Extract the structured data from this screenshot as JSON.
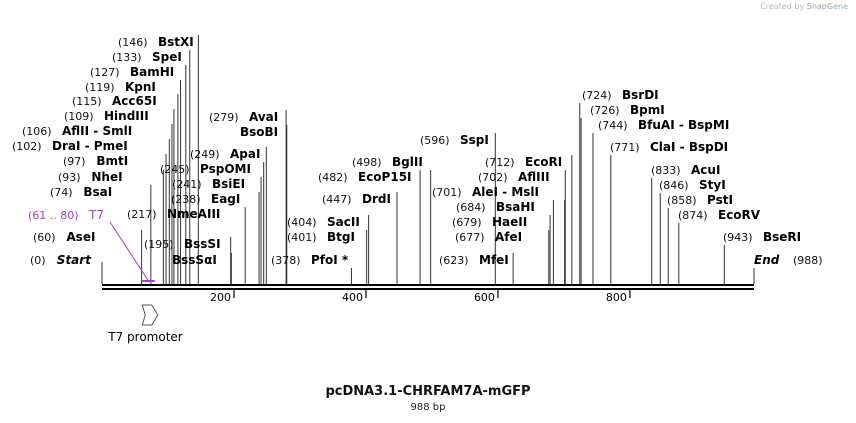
{
  "credit": {
    "prefix": "Created by",
    "brand": "SnapGene"
  },
  "plasmid": {
    "name": "pcDNA3.1-CHRFAM7A-mGFP",
    "length_label": "988 bp",
    "length": 988
  },
  "colors": {
    "feature": "#a040c8",
    "text": "#000000",
    "line": "#333333"
  },
  "axis_ticks": [
    {
      "pos": 200,
      "label": "200"
    },
    {
      "pos": 400,
      "label": "400"
    },
    {
      "pos": 600,
      "label": "600"
    },
    {
      "pos": 800,
      "label": "800"
    }
  ],
  "features": [
    {
      "name": "T7 promoter",
      "start": 61,
      "end": 80,
      "direction": "forward"
    }
  ],
  "primer": {
    "name": "T7",
    "range": "(61 .. 80)",
    "start": 61,
    "end": 80
  },
  "ends": [
    {
      "name": "Start",
      "pos_label": "(0)",
      "pos": 0
    },
    {
      "name": "End",
      "pos_label": "(988)",
      "pos": 988
    }
  ],
  "sites": [
    {
      "pos_label": "(60)",
      "name": "AseI",
      "pos": 60
    },
    {
      "pos_label": "(74)",
      "name": "BsaI",
      "pos": 74
    },
    {
      "pos_label": "(93)",
      "name": "NheI",
      "pos": 93
    },
    {
      "pos_label": "(97)",
      "name": "BmtI",
      "pos": 97
    },
    {
      "pos_label": "(102)",
      "name": "DraI  -  PmeI",
      "pos": 102
    },
    {
      "pos_label": "(106)",
      "name": "AflII  -  SmlI",
      "pos": 106
    },
    {
      "pos_label": "(109)",
      "name": "HindIII",
      "pos": 109
    },
    {
      "pos_label": "(115)",
      "name": "Acc65I",
      "pos": 115
    },
    {
      "pos_label": "(119)",
      "name": "KpnI",
      "pos": 119
    },
    {
      "pos_label": "(127)",
      "name": "BamHI",
      "pos": 127
    },
    {
      "pos_label": "(133)",
      "name": "SpeI",
      "pos": 133
    },
    {
      "pos_label": "(146)",
      "name": "BstXI",
      "pos": 146
    },
    {
      "pos_label": "(217)",
      "name": "NmeAIII",
      "pos": 217
    },
    {
      "pos_label": "(195)",
      "name": "BssSI",
      "pos": 195
    },
    {
      "pos_label": "",
      "name": "BssSαI",
      "pos": 196
    },
    {
      "pos_label": "(238)",
      "name": "EagI",
      "pos": 238
    },
    {
      "pos_label": "(241)",
      "name": "BsiEI",
      "pos": 241
    },
    {
      "pos_label": "(245)",
      "name": "PspOMI",
      "pos": 245
    },
    {
      "pos_label": "(249)",
      "name": "ApaI",
      "pos": 249
    },
    {
      "pos_label": "(279)",
      "name": "AvaI",
      "pos": 279
    },
    {
      "pos_label": "",
      "name": "BsoBI",
      "pos": 280
    },
    {
      "pos_label": "(378)",
      "name": "PfoI *",
      "pos": 378
    },
    {
      "pos_label": "(401)",
      "name": "BtgI",
      "pos": 401
    },
    {
      "pos_label": "(404)",
      "name": "SacII",
      "pos": 404
    },
    {
      "pos_label": "(447)",
      "name": "DrdI",
      "pos": 447
    },
    {
      "pos_label": "(482)",
      "name": "EcoP15I",
      "pos": 482
    },
    {
      "pos_label": "(498)",
      "name": "BglII",
      "pos": 498
    },
    {
      "pos_label": "(596)",
      "name": "SspI",
      "pos": 596
    },
    {
      "pos_label": "(623)",
      "name": "MfeI",
      "pos": 623
    },
    {
      "pos_label": "(677)",
      "name": "AfeI",
      "pos": 677
    },
    {
      "pos_label": "(679)",
      "name": "HaeII",
      "pos": 679
    },
    {
      "pos_label": "(684)",
      "name": "BsaHI",
      "pos": 684
    },
    {
      "pos_label": "(701)",
      "name": "AleI  -  MslI",
      "pos": 701
    },
    {
      "pos_label": "(702)",
      "name": "AflIII",
      "pos": 702
    },
    {
      "pos_label": "(712)",
      "name": "EcoRI",
      "pos": 712
    },
    {
      "pos_label": "(724)",
      "name": "BsrDI",
      "pos": 724
    },
    {
      "pos_label": "(726)",
      "name": "BpmI",
      "pos": 726
    },
    {
      "pos_label": "(744)",
      "name": "BfuAI  -  BspMI",
      "pos": 744
    },
    {
      "pos_label": "(771)",
      "name": "ClaI  -  BspDI",
      "pos": 771
    },
    {
      "pos_label": "(833)",
      "name": "AcuI",
      "pos": 833
    },
    {
      "pos_label": "(846)",
      "name": "StyI",
      "pos": 846
    },
    {
      "pos_label": "(858)",
      "name": "PstI",
      "pos": 858
    },
    {
      "pos_label": "(874)",
      "name": "EcoRV",
      "pos": 874
    },
    {
      "pos_label": "(943)",
      "name": "BseRI",
      "pos": 943
    }
  ]
}
